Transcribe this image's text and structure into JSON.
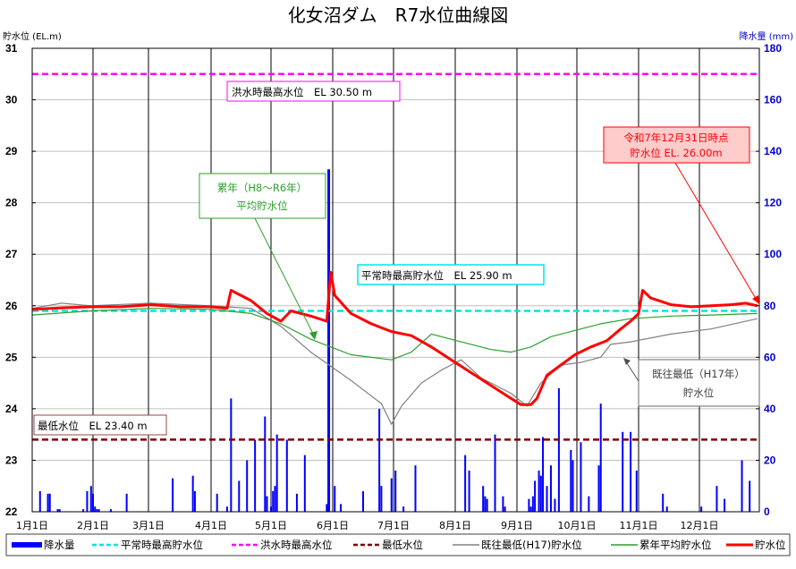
{
  "chart_data": {
    "type": "line",
    "title": "化女沼ダム　R7水位曲線図",
    "ylabel": "貯水位 (EL.m)",
    "y2label": "降水量 (mm)",
    "ylim": [
      22,
      31
    ],
    "y2lim": [
      0,
      180
    ],
    "yticks": [
      22,
      23,
      24,
      25,
      26,
      27,
      28,
      29,
      30,
      31
    ],
    "y2ticks": [
      0,
      20,
      40,
      60,
      80,
      100,
      120,
      140,
      160,
      180
    ],
    "xticks": [
      "1月1日",
      "2月1日",
      "3月1日",
      "4月1日",
      "5月1日",
      "6月1日",
      "7月1日",
      "8月1日",
      "9月1日",
      "10月1日",
      "11月1日",
      "12月1日"
    ],
    "grid": true,
    "legend_position": "bottom",
    "reference_lines": [
      {
        "name": "平常時最高貯水位",
        "value": 25.9,
        "color": "#00e5e5",
        "style": "dashed"
      },
      {
        "name": "洪水時最高水位",
        "value": 30.5,
        "color": "#ff00ff",
        "style": "dashed"
      },
      {
        "name": "最低水位",
        "value": 23.4,
        "color": "#800000",
        "style": "dashed"
      }
    ],
    "series": [
      {
        "name": "貯水位",
        "color": "#ff0000",
        "x_day": [
          0,
          15,
          30,
          45,
          60,
          75,
          90,
          98,
          100,
          110,
          118,
          125,
          130,
          140,
          148,
          150,
          152,
          160,
          170,
          180,
          190,
          200,
          210,
          220,
          230,
          238,
          245,
          250,
          253,
          258,
          265,
          272,
          280,
          288,
          295,
          300,
          304,
          306,
          310,
          320,
          330,
          340,
          350,
          358,
          364
        ],
        "values": [
          25.93,
          25.96,
          25.98,
          25.98,
          26.02,
          25.98,
          25.98,
          25.95,
          26.3,
          26.1,
          25.85,
          25.7,
          25.9,
          25.8,
          25.7,
          26.65,
          26.2,
          25.85,
          25.65,
          25.5,
          25.42,
          25.2,
          24.95,
          24.7,
          24.45,
          24.25,
          24.08,
          24.08,
          24.2,
          24.65,
          24.85,
          25.05,
          25.2,
          25.32,
          25.55,
          25.7,
          25.85,
          26.3,
          26.15,
          26.02,
          25.98,
          26.0,
          26.02,
          26.05,
          26.0
        ]
      },
      {
        "name": "累年平均貯水位",
        "color": "#2e9e2e",
        "x_day": [
          0,
          30,
          60,
          90,
          110,
          125,
          140,
          160,
          180,
          190,
          200,
          210,
          220,
          230,
          240,
          250,
          260,
          270,
          285,
          300,
          320,
          340,
          364
        ],
        "values": [
          25.82,
          25.9,
          25.95,
          25.93,
          25.85,
          25.65,
          25.35,
          25.05,
          24.95,
          25.1,
          25.45,
          25.35,
          25.25,
          25.15,
          25.1,
          25.2,
          25.4,
          25.5,
          25.65,
          25.75,
          25.8,
          25.82,
          25.85
        ]
      },
      {
        "name": "既往最低(H17)貯水位",
        "color": "#808080",
        "x_day": [
          0,
          15,
          30,
          60,
          90,
          110,
          125,
          140,
          160,
          175,
          180,
          185,
          195,
          205,
          215,
          225,
          240,
          248,
          255,
          265,
          275,
          285,
          290,
          300,
          320,
          340,
          364
        ],
        "values": [
          25.95,
          26.05,
          26.0,
          26.05,
          26.0,
          25.95,
          25.6,
          25.1,
          24.55,
          24.1,
          23.7,
          24.05,
          24.5,
          24.75,
          24.95,
          24.6,
          24.3,
          24.05,
          24.5,
          24.85,
          24.9,
          25.0,
          25.25,
          25.3,
          25.45,
          25.55,
          25.75
        ]
      }
    ],
    "bar_series": {
      "name": "降水量",
      "color": "#0000ff",
      "axis": "right",
      "x_day": [
        4,
        8,
        9,
        13,
        14,
        26,
        28,
        30,
        31,
        32,
        33,
        34,
        40,
        48,
        71,
        81,
        82,
        93,
        98,
        100,
        104,
        108,
        112,
        117,
        118,
        120,
        121,
        122,
        123,
        128,
        133,
        137,
        148,
        149,
        152,
        155,
        166,
        174,
        175,
        180,
        182,
        186,
        192,
        217,
        219,
        226,
        227,
        228,
        232,
        236,
        237,
        249,
        250,
        251,
        252,
        254,
        255,
        256,
        258,
        260,
        262,
        264,
        270,
        271,
        275,
        279,
        284,
        285,
        296,
        300,
        303,
        316,
        318,
        335,
        343,
        347,
        356,
        360
      ],
      "values": [
        8,
        7,
        7,
        1,
        1,
        1,
        8,
        10,
        7,
        2,
        1,
        1,
        1,
        7,
        13,
        14,
        8,
        7,
        2,
        44,
        12,
        20,
        28,
        37,
        6,
        2,
        8,
        10,
        30,
        28,
        7,
        22,
        3,
        133,
        10,
        3,
        8,
        40,
        10,
        13,
        16,
        2,
        18,
        22,
        16,
        10,
        6,
        5,
        30,
        6,
        2,
        5,
        2,
        6,
        12,
        16,
        14,
        29,
        10,
        18,
        5,
        48,
        24,
        20,
        27,
        6,
        18,
        42,
        31,
        31,
        16,
        7,
        2,
        2,
        10,
        5,
        20,
        12
      ]
    },
    "annotations": [
      {
        "text": "洪水時最高水位　EL 30.50 m",
        "border": "#ff00ff"
      },
      {
        "text": "累年（H8〜R6年）平均貯水位",
        "border": "#2e9e2e"
      },
      {
        "text": "平常時最高貯水位　EL 25.90 m",
        "border": "#00e5e5"
      },
      {
        "text": "令和7年12月31日時点 貯水位 EL. 26.00m",
        "border": "#ff0000"
      },
      {
        "text": "既往最低（H17年）貯水位",
        "border": "#808080"
      },
      {
        "text": "最低水位　EL 23.40 m",
        "border": "#800000"
      }
    ]
  },
  "header": {
    "title": "化女沼ダム　R7水位曲線図",
    "left_axis_label": "貯水位 (EL.m)",
    "right_axis_label": "降水量 (mm)"
  },
  "annotations": {
    "flood_max": "洪水時最高水位　EL 30.50 m",
    "avg_line1": "累年（H8〜R6年）",
    "avg_line2": "平均貯水位",
    "normal_max": "平常時最高貯水位　EL 25.90 m",
    "current_line1": "令和7年12月31日時点",
    "current_line2": "貯水位 EL. 26.00m",
    "record_low_line1": "既往最低（H17年）",
    "record_low_line2": "貯水位",
    "min_level": "最低水位　EL 23.40 m"
  },
  "legend": {
    "items": [
      {
        "label": "降水量",
        "color": "#0000ff"
      },
      {
        "label": "平常時最高貯水位",
        "color": "#00e5e5"
      },
      {
        "label": "洪水時最高水位",
        "color": "#ff00ff"
      },
      {
        "label": "最低水位",
        "color": "#800000"
      },
      {
        "label": "既往最低(H17)貯水位",
        "color": "#808080"
      },
      {
        "label": "累年平均貯水位",
        "color": "#2e9e2e"
      },
      {
        "label": "貯水位",
        "color": "#ff0000"
      }
    ]
  },
  "colors": {
    "right_axis": "#0000cc",
    "grid": "#c0c0c0",
    "month_grid": "#000000",
    "current_box_fill": "#ffcccc"
  }
}
